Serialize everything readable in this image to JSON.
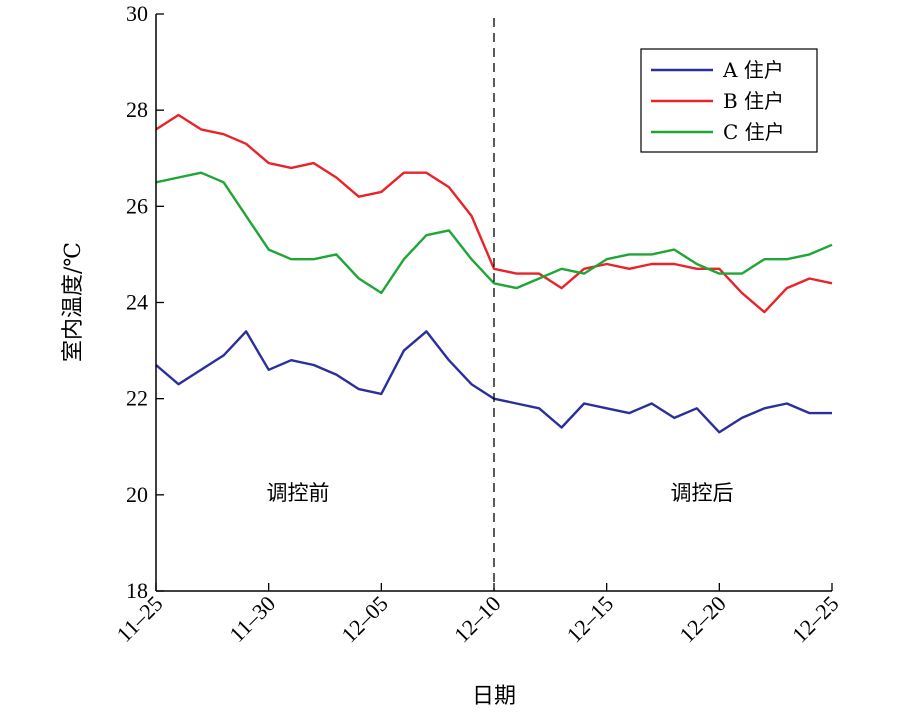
{
  "chart_data": {
    "type": "line",
    "title": "",
    "xlabel": "日期",
    "ylabel": "室内温度/℃",
    "ylim": [
      18,
      30
    ],
    "yticks": [
      "18",
      "20",
      "22",
      "24",
      "26",
      "28",
      "30"
    ],
    "xlim": [
      "11-25",
      "12-25"
    ],
    "xticks": [
      "11–25",
      "11–30",
      "12–05",
      "12–10",
      "12–15",
      "12–20",
      "12–25"
    ],
    "legend_position": "top-right",
    "divider_date": "12-10",
    "annotations": [
      "调控前",
      "调控后"
    ],
    "series": [
      {
        "name": "A 住户",
        "color": "#2b2f9c",
        "x": [
          "11-25",
          "11-26",
          "11-27",
          "11-28",
          "11-29",
          "11-30",
          "12-01",
          "12-02",
          "12-03",
          "12-04",
          "12-05",
          "12-06",
          "12-07",
          "12-08",
          "12-09",
          "12-10",
          "12-11",
          "12-12",
          "12-13",
          "12-14",
          "12-15",
          "12-16",
          "12-17",
          "12-18",
          "12-19",
          "12-20",
          "12-21",
          "12-22",
          "12-23",
          "12-24",
          "12-25"
        ],
        "values": [
          22.7,
          22.3,
          22.6,
          22.9,
          23.4,
          22.6,
          22.8,
          22.7,
          22.5,
          22.2,
          22.1,
          23.0,
          23.4,
          22.8,
          22.3,
          22.0,
          21.9,
          21.8,
          21.4,
          21.9,
          21.8,
          21.7,
          21.9,
          21.6,
          21.8,
          21.3,
          21.6,
          21.8,
          21.9,
          21.7,
          21.7
        ]
      },
      {
        "name": "B 住户",
        "color": "#e8232a",
        "x": [
          "11-25",
          "11-26",
          "11-27",
          "11-28",
          "11-29",
          "11-30",
          "12-01",
          "12-02",
          "12-03",
          "12-04",
          "12-05",
          "12-06",
          "12-07",
          "12-08",
          "12-09",
          "12-10",
          "12-11",
          "12-12",
          "12-13",
          "12-14",
          "12-15",
          "12-16",
          "12-17",
          "12-18",
          "12-19",
          "12-20",
          "12-21",
          "12-22",
          "12-23",
          "12-24",
          "12-25"
        ],
        "values": [
          27.6,
          27.9,
          27.6,
          27.5,
          27.3,
          26.9,
          26.8,
          26.9,
          26.6,
          26.2,
          26.3,
          26.7,
          26.7,
          26.4,
          25.8,
          24.7,
          24.6,
          24.6,
          24.3,
          24.7,
          24.8,
          24.7,
          24.8,
          24.8,
          24.7,
          24.7,
          24.2,
          23.8,
          24.3,
          24.5,
          24.4
        ]
      },
      {
        "name": "C 住户",
        "color": "#1fa538",
        "x": [
          "11-25",
          "11-26",
          "11-27",
          "11-28",
          "11-29",
          "11-30",
          "12-01",
          "12-02",
          "12-03",
          "12-04",
          "12-05",
          "12-06",
          "12-07",
          "12-08",
          "12-09",
          "12-10",
          "12-11",
          "12-12",
          "12-13",
          "12-14",
          "12-15",
          "12-16",
          "12-17",
          "12-18",
          "12-19",
          "12-20",
          "12-21",
          "12-22",
          "12-23",
          "12-24",
          "12-25"
        ],
        "values": [
          26.5,
          26.6,
          26.7,
          26.5,
          25.8,
          25.1,
          24.9,
          24.9,
          25.0,
          24.5,
          24.2,
          24.9,
          25.4,
          25.5,
          24.9,
          24.4,
          24.3,
          24.5,
          24.7,
          24.6,
          24.9,
          25.0,
          25.0,
          25.1,
          24.8,
          24.6,
          24.6,
          24.9,
          24.9,
          25.0,
          25.2
        ]
      }
    ]
  }
}
